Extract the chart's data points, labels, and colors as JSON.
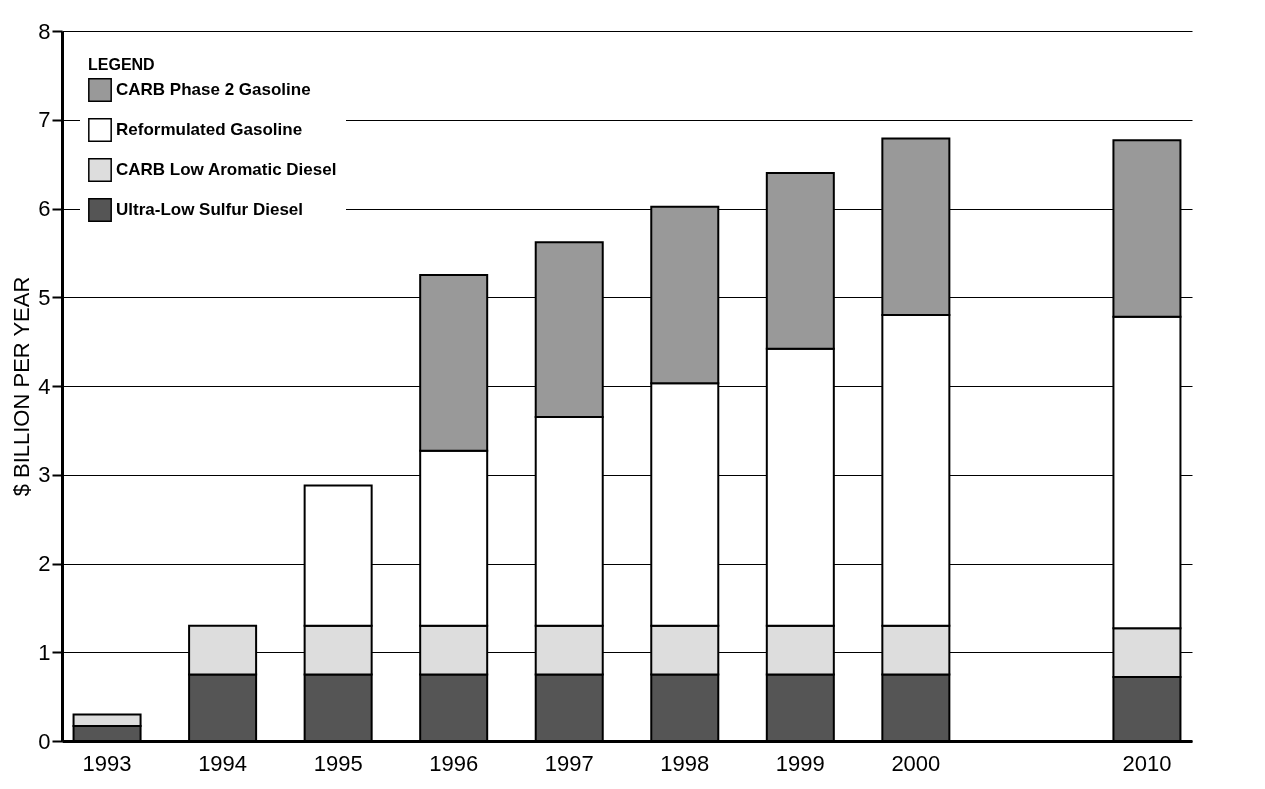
{
  "chart_data": {
    "type": "bar",
    "stacked": true,
    "ylabel": "$ BILLION PER YEAR",
    "legend_title": "LEGEND",
    "legend": "top left",
    "grid": "y",
    "categories": [
      "1993",
      "1994",
      "1995",
      "1996",
      "1997",
      "1998",
      "1999",
      "2000",
      null,
      "2010"
    ],
    "series": [
      {
        "name": "Ultra-Low Sulfur Diesel",
        "color": "#555555",
        "values": [
          0.17,
          0.75,
          0.75,
          0.75,
          0.75,
          0.75,
          0.75,
          0.75,
          null,
          0.72
        ]
      },
      {
        "name": "CARB Low Aromatic Diesel",
        "color": "#dddddd",
        "values": [
          0.13,
          0.55,
          0.55,
          0.55,
          0.55,
          0.55,
          0.55,
          0.55,
          null,
          0.55
        ]
      },
      {
        "name": "Reformulated Gasoline",
        "color": "#ffffff",
        "values": [
          null,
          null,
          1.58,
          1.97,
          2.35,
          2.73,
          3.12,
          3.5,
          null,
          3.51
        ]
      },
      {
        "name": "CARB Phase 2 Gasoline",
        "color": "#999999",
        "values": [
          null,
          null,
          null,
          1.98,
          1.97,
          1.99,
          1.98,
          1.99,
          null,
          1.99
        ]
      }
    ],
    "ylim": [
      0,
      8
    ],
    "yticks": [
      0,
      1,
      2,
      3,
      4,
      5,
      6,
      7,
      8
    ]
  }
}
